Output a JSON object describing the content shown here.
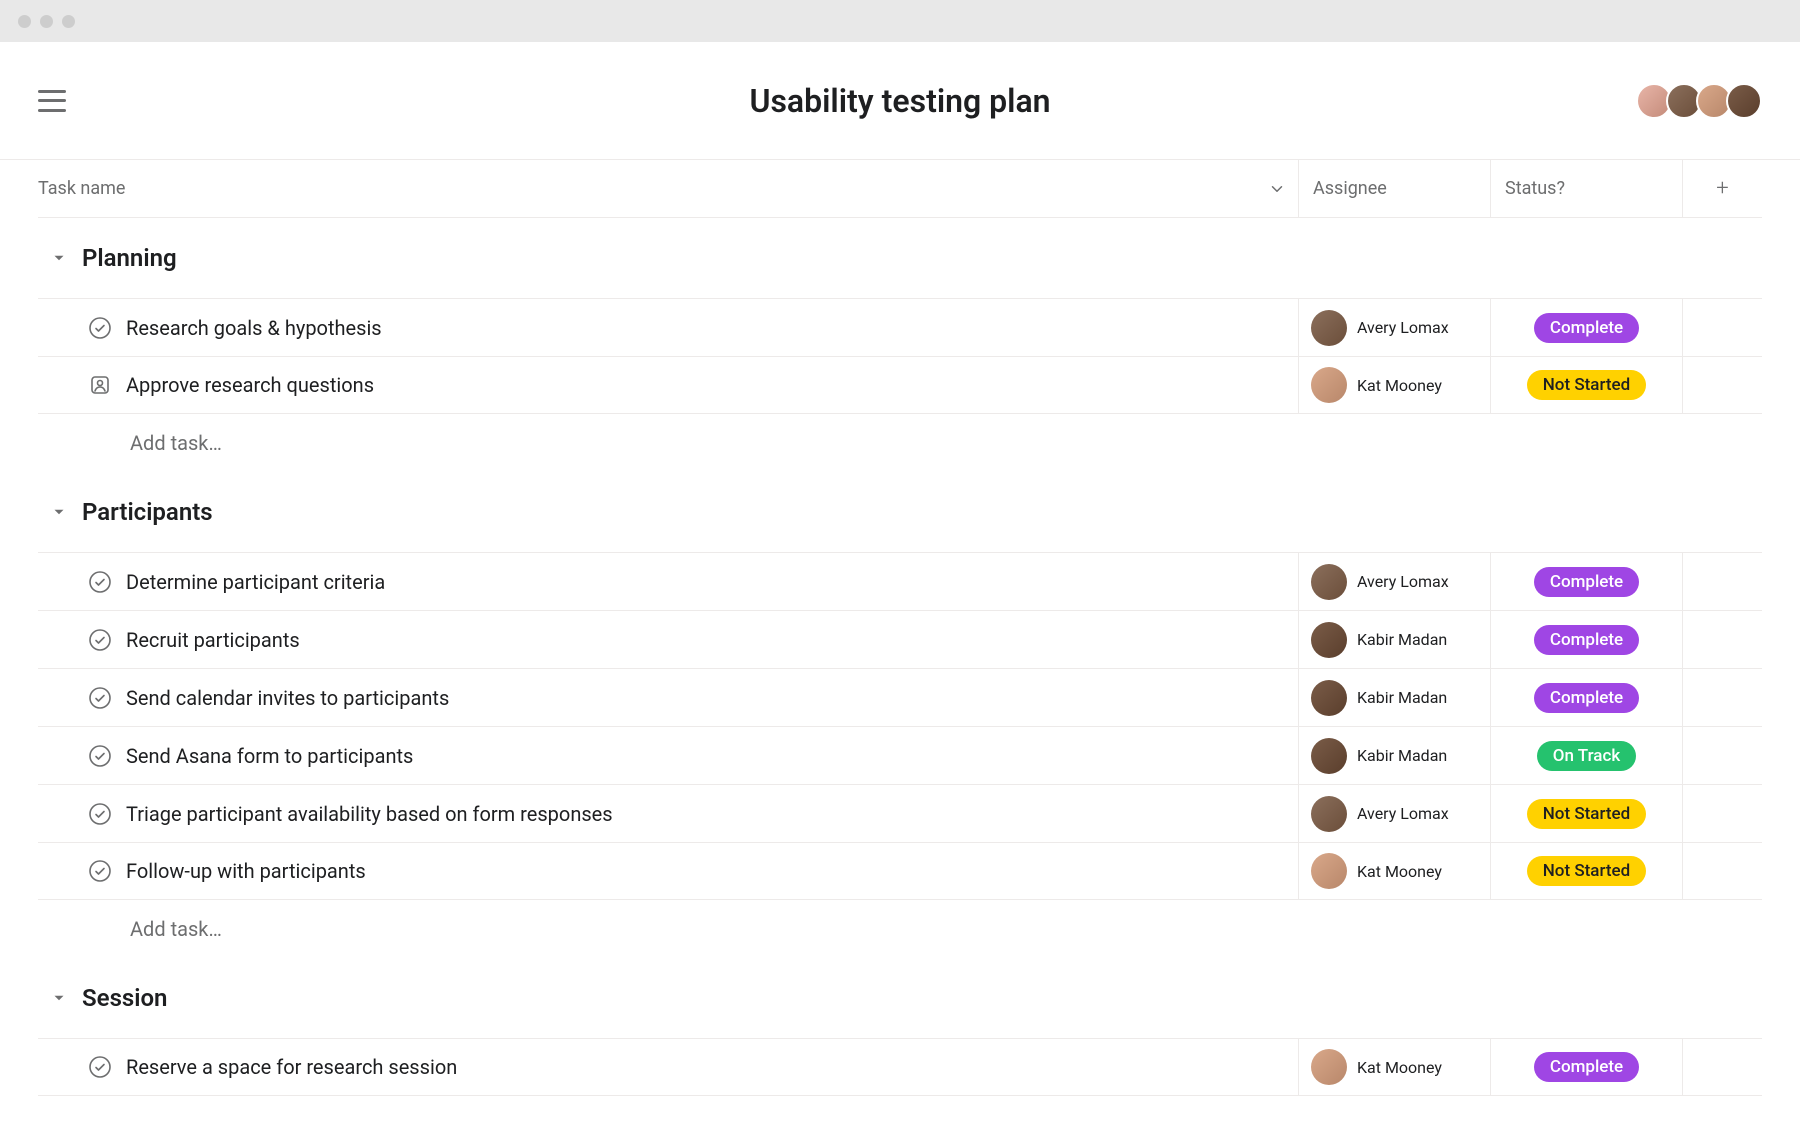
{
  "page_title": "Usability testing plan",
  "columns": {
    "task": "Task name",
    "assignee": "Assignee",
    "status": "Status?"
  },
  "add_task_label": "Add task…",
  "header_avatars": [
    "av1",
    "av2",
    "av3",
    "av4"
  ],
  "assignee_avatars": {
    "Avery Lomax": "av2",
    "Kat Mooney": "av3",
    "Kabir Madan": "av4"
  },
  "status_styles": {
    "Complete": {
      "bg": "#9f46e4",
      "fg": "#ffffff"
    },
    "Not Started": {
      "bg": "#ffd100",
      "fg": "#1e1f21"
    },
    "On Track": {
      "bg": "#25c26e",
      "fg": "#ffffff"
    }
  },
  "colors": {
    "chrome_bg": "#e8e8e8",
    "chrome_dot": "#cdcdcd",
    "border": "#edeae9",
    "text_primary": "#1e1f21",
    "text_secondary": "#6d6e6f",
    "background": "#ffffff"
  },
  "sections": [
    {
      "title": "Planning",
      "tasks": [
        {
          "icon": "check",
          "name": "Research goals & hypothesis",
          "assignee": "Avery Lomax",
          "status": "Complete"
        },
        {
          "icon": "approval",
          "name": "Approve research questions",
          "assignee": "Kat Mooney",
          "status": "Not Started"
        }
      ]
    },
    {
      "title": "Participants",
      "tasks": [
        {
          "icon": "check",
          "name": "Determine participant criteria",
          "assignee": "Avery Lomax",
          "status": "Complete"
        },
        {
          "icon": "check",
          "name": "Recruit participants",
          "assignee": "Kabir Madan",
          "status": "Complete"
        },
        {
          "icon": "check",
          "name": "Send calendar invites to participants",
          "assignee": "Kabir Madan",
          "status": "Complete"
        },
        {
          "icon": "check",
          "name": "Send Asana form to participants",
          "assignee": "Kabir Madan",
          "status": "On Track"
        },
        {
          "icon": "check",
          "name": "Triage participant availability based on form responses",
          "assignee": "Avery Lomax",
          "status": "Not Started"
        },
        {
          "icon": "check",
          "name": "Follow-up with participants",
          "assignee": "Kat Mooney",
          "status": "Not Started"
        }
      ]
    },
    {
      "title": "Session",
      "tasks": [
        {
          "icon": "check",
          "name": "Reserve a space for research session",
          "assignee": "Kat Mooney",
          "status": "Complete"
        }
      ],
      "hide_add_task": true
    }
  ]
}
